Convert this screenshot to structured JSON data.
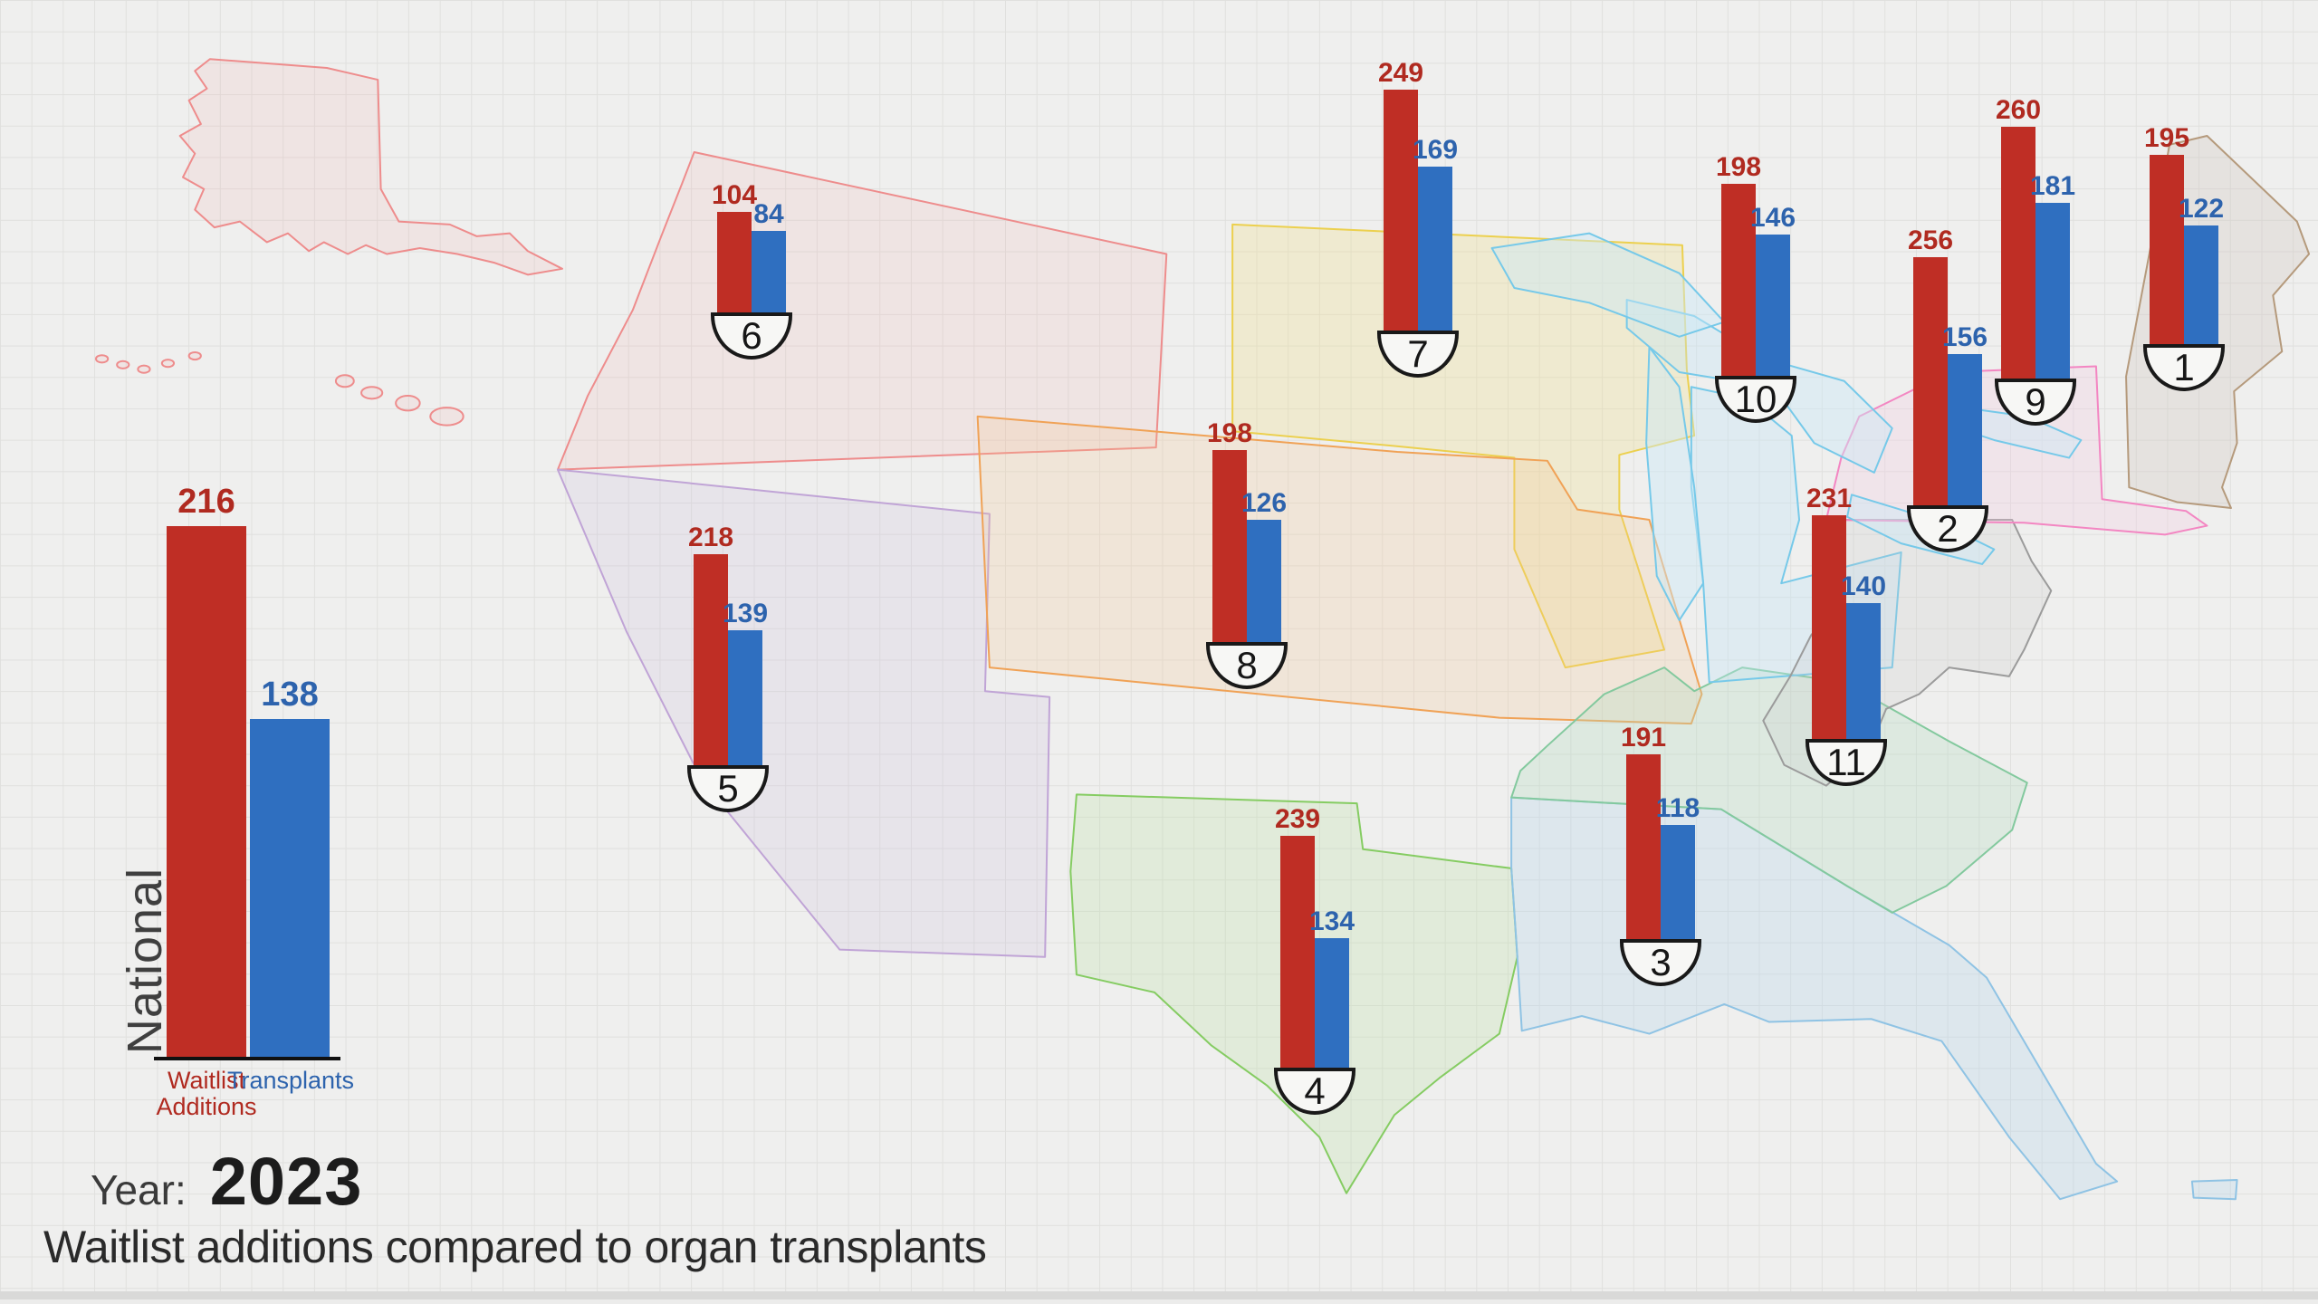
{
  "header": {
    "year_label": "Year:",
    "year_value": "2023",
    "subtitle": "Waitlist additions compared to organ transplants"
  },
  "colors": {
    "waitlist_bar": "#bf2e25",
    "waitlist_text": "#b02a20",
    "transplant_bar": "#2f6fc0",
    "transplant_text": "#2d63ad",
    "badge_fill": "#f7f7f5",
    "badge_border": "#191919",
    "axis": "#111111"
  },
  "chart_data": {
    "type": "bar",
    "series": [
      "Waitlist Additions",
      "Transplants"
    ],
    "national": {
      "label": "National",
      "waitlist_additions": 216,
      "transplants": 138
    },
    "regions": [
      {
        "region": 1,
        "waitlist_additions": 195,
        "transplants": 122
      },
      {
        "region": 2,
        "waitlist_additions": 256,
        "transplants": 156
      },
      {
        "region": 3,
        "waitlist_additions": 191,
        "transplants": 118
      },
      {
        "region": 4,
        "waitlist_additions": 239,
        "transplants": 134
      },
      {
        "region": 5,
        "waitlist_additions": 218,
        "transplants": 139
      },
      {
        "region": 6,
        "waitlist_additions": 104,
        "transplants": 84
      },
      {
        "region": 7,
        "waitlist_additions": 249,
        "transplants": 169
      },
      {
        "region": 8,
        "waitlist_additions": 198,
        "transplants": 126
      },
      {
        "region": 9,
        "waitlist_additions": 260,
        "transplants": 181
      },
      {
        "region": 10,
        "waitlist_additions": 198,
        "transplants": 146
      },
      {
        "region": 11,
        "waitlist_additions": 231,
        "transplants": 140
      }
    ]
  },
  "map": {
    "page_background": "#efefee",
    "grid_line": "#e0e0de",
    "regions": [
      {
        "id": "r1",
        "stroke": "#b59a7c",
        "fill": "rgba(205,195,185,0.28)"
      },
      {
        "id": "r2",
        "stroke": "#9b9b9b",
        "fill": "rgba(200,200,200,0.22)"
      },
      {
        "id": "r3",
        "stroke": "#8fc3e4",
        "fill": "rgba(175,212,238,0.28)"
      },
      {
        "id": "r4",
        "stroke": "#85cc62",
        "fill": "rgba(185,222,160,0.25)"
      },
      {
        "id": "r5",
        "stroke": "#c0a4d6",
        "fill": "rgba(195,175,215,0.16)"
      },
      {
        "id": "r6",
        "stroke": "#ee8c8c",
        "fill": "rgba(238,160,160,0.14)"
      },
      {
        "id": "r7",
        "stroke": "#ecd04e",
        "fill": "rgba(238,222,140,0.30)"
      },
      {
        "id": "r8",
        "stroke": "#f0a256",
        "fill": "rgba(244,195,140,0.22)"
      },
      {
        "id": "r9",
        "stroke": "#f386c2",
        "fill": "rgba(246,200,226,0.28)"
      },
      {
        "id": "r10",
        "stroke": "#76c9e9",
        "fill": "rgba(195,230,246,0.35)"
      },
      {
        "id": "r11",
        "stroke": "#83c99e",
        "fill": "rgba(180,218,193,0.30)"
      },
      {
        "id": "lakes",
        "stroke": "#76c9e9",
        "fill": "rgba(205,232,246,0.45)"
      }
    ]
  }
}
